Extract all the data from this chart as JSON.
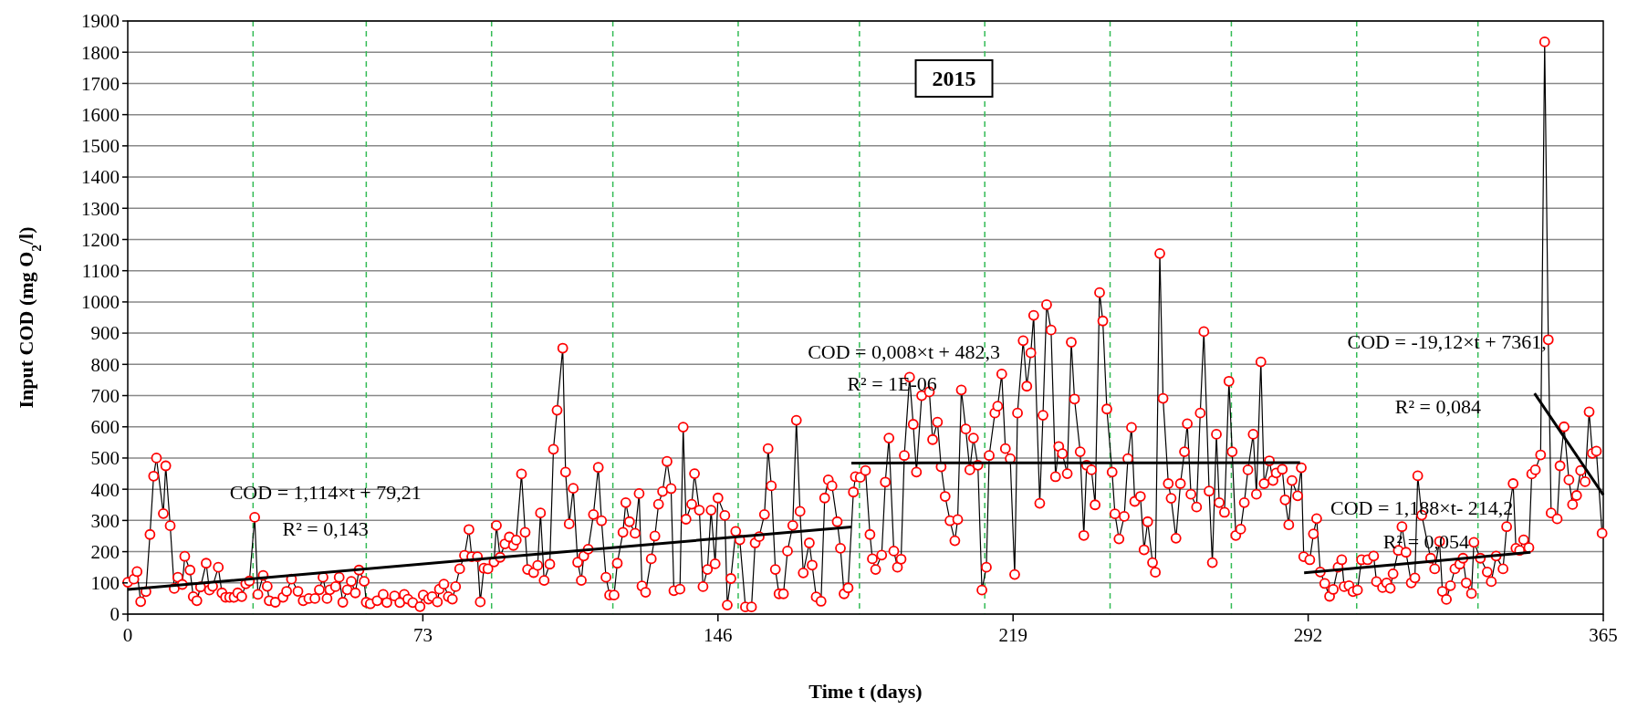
{
  "chart_data": {
    "type": "line",
    "title": "2015",
    "xlabel": "Time t (days)",
    "ylabel": "Input  COD (mg O$_{2}$/l)",
    "xlim": [
      0,
      365
    ],
    "xticks": [
      0,
      73,
      146,
      219,
      292,
      365
    ],
    "ylim": [
      0,
      1900
    ],
    "yticks": [
      0,
      100,
      200,
      300,
      400,
      500,
      600,
      700,
      800,
      900,
      1000,
      1100,
      1200,
      1300,
      1400,
      1500,
      1600,
      1700,
      1800,
      1900
    ],
    "grid": "y",
    "ref_lines": [
      {
        "axis": "x",
        "value": 31,
        "color": "#33bb55",
        "line_style": "dashed"
      },
      {
        "axis": "x",
        "value": 59,
        "color": "#33bb55",
        "line_style": "dashed"
      },
      {
        "axis": "x",
        "value": 90,
        "color": "#33bb55",
        "line_style": "dashed"
      },
      {
        "axis": "x",
        "value": 120,
        "color": "#33bb55",
        "line_style": "dashed"
      },
      {
        "axis": "x",
        "value": 151,
        "color": "#33bb55",
        "line_style": "dashed"
      },
      {
        "axis": "x",
        "value": 181,
        "color": "#33bb55",
        "line_style": "dashed"
      },
      {
        "axis": "x",
        "value": 212,
        "color": "#33bb55",
        "line_style": "dashed"
      },
      {
        "axis": "x",
        "value": 243,
        "color": "#33bb55",
        "line_style": "dashed"
      },
      {
        "axis": "x",
        "value": 273,
        "color": "#33bb55",
        "line_style": "dashed"
      },
      {
        "axis": "x",
        "value": 304,
        "color": "#33bb55",
        "line_style": "dashed"
      },
      {
        "axis": "x",
        "value": 334,
        "color": "#33bb55",
        "line_style": "dashed"
      }
    ],
    "annotations": [
      "COD = 1,114×t + 79,21",
      "R² = 0,143",
      "COD = 0,008×t + 482,3",
      "R² = 1E-06",
      "COD = -19,12×t + 7361,",
      "R² = 0,084",
      "COD = 1,188×t- 214,2",
      "R² = 0,054"
    ],
    "series": [
      {
        "color": "#000000",
        "marker": "circle",
        "x": [
          0,
          1.5,
          2.3,
          3.2,
          4.5,
          5.5,
          6.4,
          7.1,
          8.8,
          9.4,
          10.5,
          11.5,
          12.4,
          13.5,
          14.1,
          15.4,
          16.2,
          17.1,
          18,
          19.4,
          20.2,
          21,
          22.4,
          23.3,
          24.2,
          25.2,
          26.3,
          27.2,
          28.2,
          29.2,
          30.1,
          31.4,
          32.2,
          33.5,
          34.5,
          35,
          36.5,
          38.4,
          39.3,
          40.5,
          42.1,
          43.4,
          44.8,
          46.3,
          47.4,
          48.3,
          49.3,
          50,
          51.4,
          52.3,
          53.2,
          54.3,
          55.3,
          56.3,
          57.2,
          58.5,
          59,
          60,
          61.7,
          63.2,
          64.1,
          66,
          67.3,
          68.4,
          69.3,
          70.5,
          72.3,
          73.1,
          74.4,
          75.3,
          76.6,
          77.1,
          78.2,
          79.3,
          80.3,
          81.1,
          82.1,
          83.3,
          84.4,
          85.1,
          86.5,
          87.2,
          88.1,
          89.1,
          90.6,
          91.2,
          92.1,
          93.3,
          94.4,
          95.4,
          96.1,
          97.4,
          98.3,
          98.9,
          100.4,
          101.4,
          102.1,
          103,
          104.4,
          105.3,
          106.2,
          107.6,
          108.3,
          109.2,
          110.2,
          111.3,
          112.2,
          112.8,
          113.9,
          115.2,
          116.4,
          117.2,
          118.3,
          119.2,
          120.3,
          121.1,
          122.5,
          123.2,
          124.1,
          125.5,
          126.5,
          127.2,
          128.1,
          129.5,
          130.4,
          131.3,
          132.3,
          133.4,
          134.4,
          135.1,
          136.6,
          137.4,
          138.1,
          139.5,
          140.2,
          141.4,
          142.3,
          143.4,
          144.3,
          145.3,
          146,
          147.7,
          148.3,
          149.2,
          150.4,
          151.4,
          152.8,
          154.3,
          155.2,
          156.2,
          157.5,
          158.4,
          159.2,
          160.2,
          161.1,
          162.2,
          163.2,
          164.5,
          165.4,
          166.3,
          167.1,
          168.6,
          169.3,
          170.3,
          171.5,
          172.4,
          173.3,
          174.2,
          175.5,
          176.3,
          177.2,
          178.2,
          179.5,
          180,
          181.2,
          182.5,
          183.6,
          184.2,
          185,
          186.5,
          187.4,
          188.3,
          189.5,
          190.4,
          191.3,
          192.1,
          193.4,
          194.3,
          195.1,
          196.4,
          198.3,
          199.1,
          200.3,
          201.2,
          202.2,
          203.4,
          204.6,
          205.3,
          206.2,
          207.3,
          208.3,
          209.2,
          210.3,
          211.3,
          212.4,
          213.1,
          214.5,
          215.2,
          216.2,
          217.1,
          218.3,
          219.4,
          220.1,
          221.5,
          222.4,
          223.4,
          224.1,
          225.6,
          226.4,
          227.3,
          228.4,
          229.5,
          230.3,
          231.2,
          232.4,
          233.4,
          234.2,
          235.6,
          236.5,
          237.2,
          238.4,
          239.3,
          240.4,
          241.2,
          242.2,
          243.5,
          244.2,
          245.2,
          246.5,
          247.4,
          248.3,
          249.1,
          250.5,
          251.4,
          252.3,
          253.5,
          254.2,
          255.3,
          256.1,
          257.4,
          258.1,
          259.3,
          260.4,
          261.4,
          262.1,
          263,
          264.4,
          265.3,
          266.2,
          267.5,
          268.3,
          269.3,
          270,
          271.3,
          272.4,
          273.2,
          274.1,
          275.3,
          276.2,
          277.1,
          278.4,
          279.2,
          280.3,
          281.1,
          282.4,
          283.3,
          284.1,
          285.6,
          286.3,
          287.2,
          288,
          289.4,
          290.3,
          290.9,
          292.4,
          293.3,
          294.1,
          295,
          296.1,
          297.3,
          298.2,
          299.4,
          300.3,
          300.9,
          302.1,
          303.1,
          304.2,
          305.2,
          306.7,
          308.2,
          308.9,
          310.4,
          311.4,
          312.3,
          313,
          314.3,
          315.2,
          316.2,
          317.5,
          318.4,
          319.1,
          320.1,
          322.3,
          323.3,
          324.5,
          325.2,
          326.2,
          327.2,
          328.3,
          329.5,
          330.3,
          331.1,
          332.4,
          333,
          334.6,
          336.3,
          337.3,
          338.5,
          340.2,
          341.1,
          342.7,
          343.4,
          344.3,
          345.3,
          346.6,
          347.3,
          348.2,
          349.5,
          350.5,
          351.4,
          352.1,
          353.6,
          354.3,
          355.3,
          356.5,
          357.4,
          358.4,
          359.4,
          360.5,
          361.5,
          362.3,
          363.3,
          364.7
        ],
        "values": [
          102,
          112,
          136,
          40,
          72,
          255,
          442,
          500,
          322,
          475,
          283,
          82,
          118,
          95,
          185,
          141,
          56,
          43,
          87,
          163,
          77,
          89,
          150,
          68,
          54,
          54,
          54,
          68,
          56,
          97,
          106,
          310,
          63,
          124,
          89,
          43,
          38,
          54,
          73,
          112,
          73,
          43,
          50,
          50,
          78,
          118,
          50,
          78,
          88,
          118,
          38,
          78,
          105,
          68,
          141,
          105,
          38,
          33,
          43,
          63,
          37,
          58,
          37,
          63,
          48,
          37,
          24,
          61,
          48,
          56,
          39,
          80,
          96,
          56,
          48,
          88,
          145,
          188,
          271,
          184,
          184,
          39,
          147,
          145,
          167,
          284,
          182,
          225,
          247,
          220,
          237,
          449,
          262,
          143,
          133,
          156,
          324,
          108,
          160,
          528,
          653,
          852,
          455,
          289,
          403,
          166,
          108,
          186,
          208,
          319,
          470,
          299,
          118,
          61,
          61,
          163,
          262,
          357,
          296,
          259,
          386,
          90,
          70,
          177,
          250,
          352,
          393,
          489,
          402,
          75,
          80,
          599,
          304,
          352,
          450,
          333,
          88,
          143,
          333,
          161,
          372,
          316,
          29,
          114,
          265,
          238,
          23,
          23,
          228,
          248,
          319,
          530,
          411,
          143,
          65,
          65,
          202,
          284,
          621,
          329,
          132,
          228,
          157,
          55,
          41,
          372,
          430,
          411,
          296,
          211,
          65,
          84,
          391,
          440,
          438,
          460,
          255,
          177,
          143,
          189,
          423,
          564,
          202,
          150,
          176,
          508,
          759,
          608,
          455,
          700,
          712,
          559,
          615,
          472,
          377,
          299,
          235,
          303,
          718,
          593,
          462,
          564,
          477,
          77,
          150,
          508,
          644,
          666,
          769,
          530,
          498,
          127,
          644,
          876,
          730,
          837,
          957,
          355,
          637,
          991,
          910,
          440,
          537,
          514,
          450,
          871,
          689,
          520,
          252,
          477,
          462,
          350,
          1030,
          939,
          657,
          455,
          321,
          241,
          313,
          498,
          598,
          361,
          377,
          206,
          296,
          165,
          134,
          1155,
          691,
          418,
          371,
          243,
          418,
          520,
          610,
          384,
          343,
          644,
          905,
          394,
          165,
          576,
          357,
          326,
          746,
          520,
          252,
          272,
          357,
          462,
          576,
          384,
          808,
          418,
          491,
          428,
          452,
          464,
          366,
          286,
          428,
          379,
          469,
          184,
          174,
          257,
          306,
          135,
          98,
          57,
          79,
          150,
          174,
          88,
          91,
          72,
          77,
          174,
          174,
          186,
          104,
          85,
          100,
          83,
          129,
          204,
          280,
          198,
          100,
          116,
          443,
          317,
          179,
          145,
          233,
          73,
          47,
          91,
          145,
          160,
          179,
          100,
          66,
          230,
          179,
          135,
          104,
          186,
          145,
          280,
          418,
          211,
          204,
          238,
          213,
          449,
          462,
          510,
          1833,
          879,
          324,
          305,
          475,
          600,
          430,
          351,
          380,
          460,
          424,
          648,
          515,
          522,
          259
        ]
      },
      {
        "type": "line",
        "color": "#000000",
        "marker": "none",
        "x": [
          0,
          179
        ],
        "values": [
          79,
          279
        ]
      },
      {
        "type": "line",
        "color": "#000000",
        "marker": "none",
        "x": [
          179,
          290
        ],
        "values": [
          484,
          485
        ]
      },
      {
        "type": "line",
        "color": "#000000",
        "marker": "none",
        "x": [
          291,
          347
        ],
        "values": [
          132,
          198
        ]
      },
      {
        "type": "line",
        "color": "#000000",
        "marker": "none",
        "x": [
          348,
          365
        ],
        "values": [
          707,
          382
        ]
      }
    ]
  }
}
